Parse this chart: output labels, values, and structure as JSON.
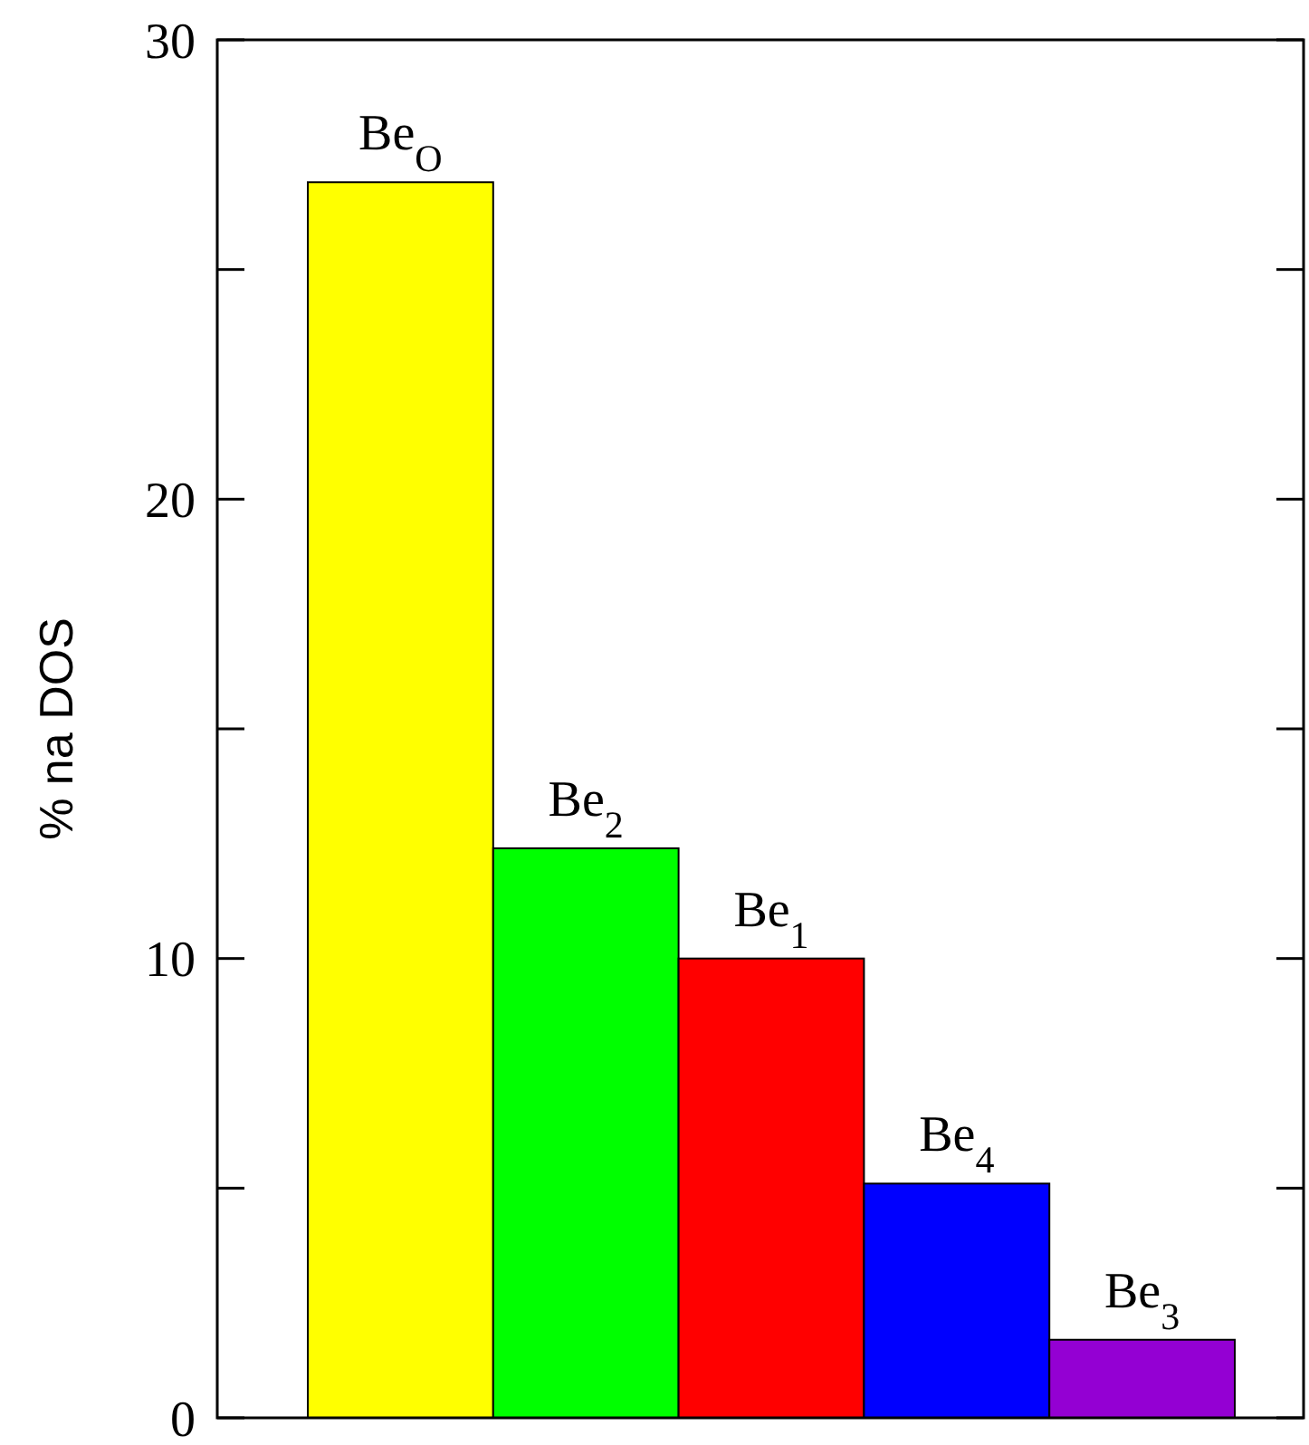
{
  "chart_data": {
    "type": "bar",
    "ylabel": "% na DOS",
    "categories": [
      "Be$_{O}$",
      "Be$_{2}$",
      "Be$_{1}$",
      "Be$_{4}$",
      "Be$_{3}$"
    ],
    "values": [
      26.9,
      12.4,
      10.0,
      5.1,
      1.7
    ],
    "colors": [
      "#ffff00",
      "#00ff00",
      "#ff0000",
      "#0000ff",
      "#9400d3"
    ],
    "ylim": [
      0,
      30
    ],
    "yticks": [
      0,
      {
        "value": 5,
        "label": null
      },
      10,
      {
        "value": 15,
        "label": null
      },
      20,
      {
        "value": 25,
        "label": null
      },
      30
    ],
    "grid": false
  }
}
